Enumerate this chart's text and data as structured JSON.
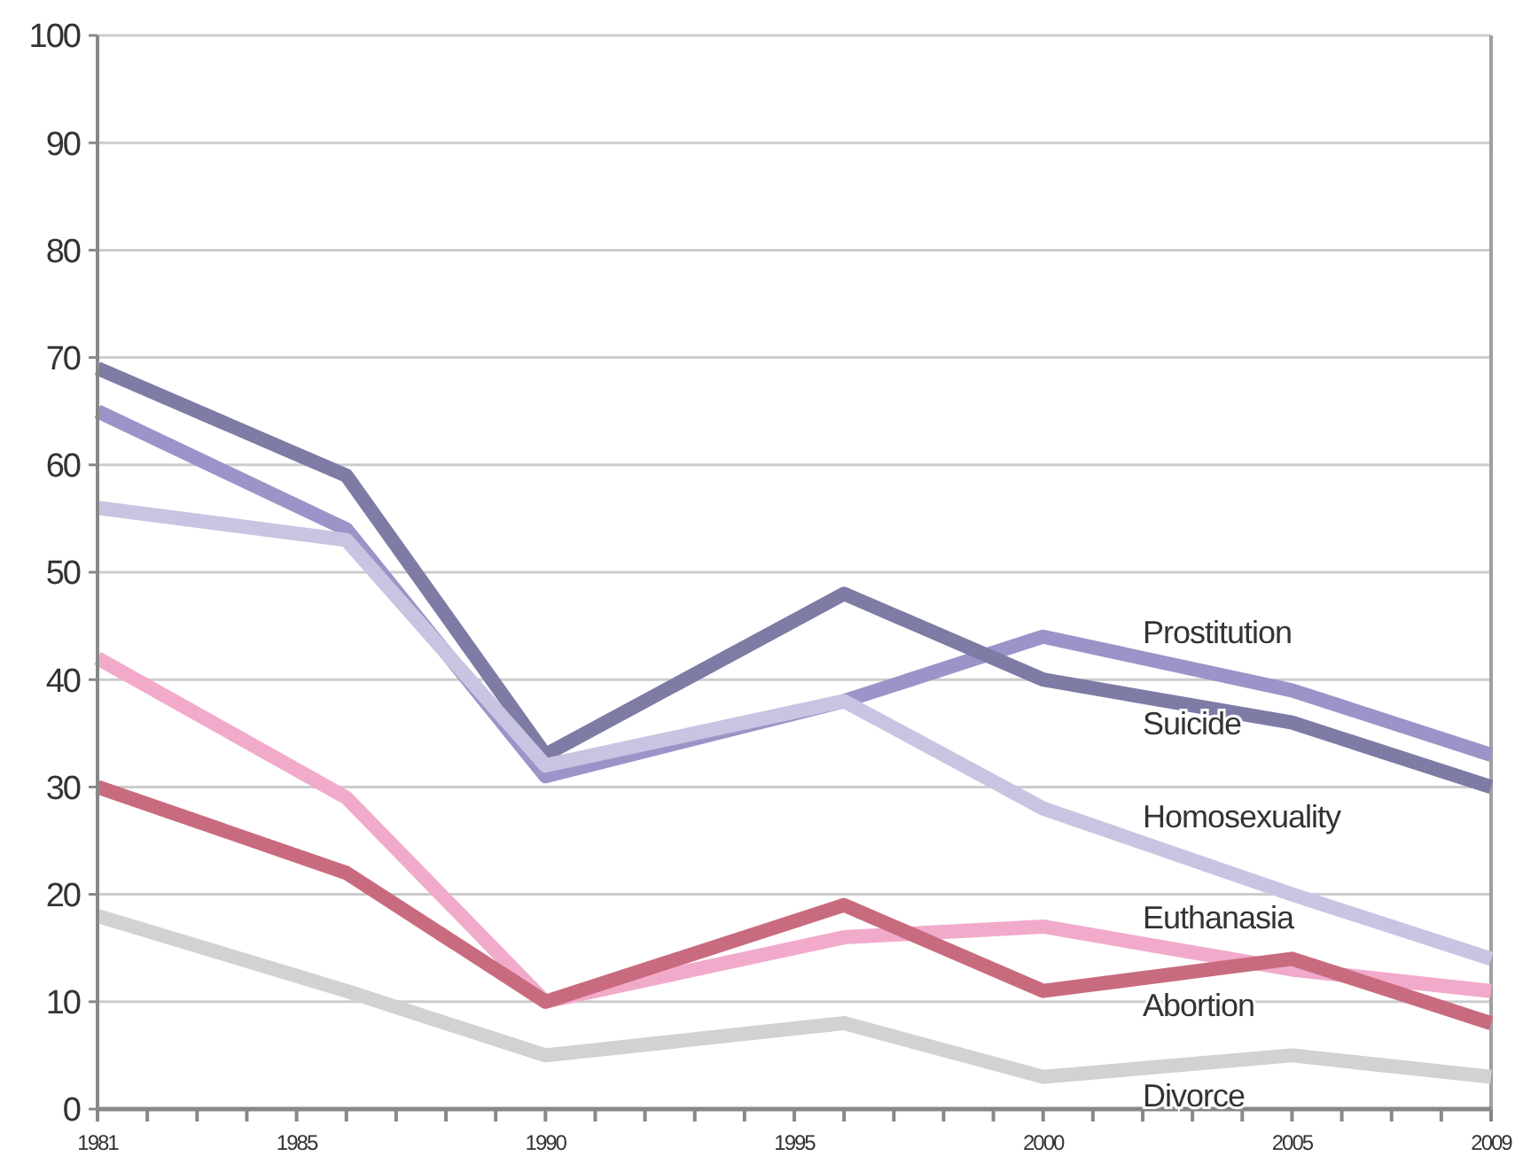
{
  "chart_data": {
    "type": "line",
    "x": [
      1981,
      1986,
      1990,
      1996,
      2000,
      2005,
      2009
    ],
    "series": [
      {
        "name": "Prostitution",
        "color": "#9b94c8",
        "values": [
          65,
          54,
          31,
          38,
          44,
          39,
          33
        ]
      },
      {
        "name": "Suicide",
        "color": "#7e7ba5",
        "values": [
          69,
          59,
          33,
          48,
          40,
          36,
          30
        ]
      },
      {
        "name": "Homosexuality",
        "color": "#c8c4e2",
        "values": [
          56,
          53,
          32,
          38,
          28,
          20,
          14
        ]
      },
      {
        "name": "Euthanasia",
        "color": "#f2aacb",
        "values": [
          42,
          29,
          10,
          16,
          17,
          13,
          11
        ]
      },
      {
        "name": "Abortion",
        "color": "#c96b7e",
        "values": [
          30,
          22,
          10,
          19,
          11,
          14,
          8
        ]
      },
      {
        "name": "Divorce",
        "color": "#d2d2d2",
        "values": [
          18,
          11,
          5,
          8,
          3,
          5,
          3
        ]
      }
    ],
    "xlim": [
      1981,
      2009
    ],
    "xticks": [
      1981,
      {
        "value": 1982,
        "label": null
      },
      {
        "value": 1983,
        "label": null
      },
      {
        "value": 1984,
        "label": null
      },
      1985,
      {
        "value": 1986,
        "label": null
      },
      {
        "value": 1987,
        "label": null
      },
      {
        "value": 1988,
        "label": null
      },
      {
        "value": 1989,
        "label": null
      },
      1990,
      {
        "value": 1991,
        "label": null
      },
      {
        "value": 1992,
        "label": null
      },
      {
        "value": 1993,
        "label": null
      },
      {
        "value": 1994,
        "label": null
      },
      1995,
      {
        "value": 1996,
        "label": null
      },
      {
        "value": 1997,
        "label": null
      },
      {
        "value": 1998,
        "label": null
      },
      {
        "value": 1999,
        "label": null
      },
      2000,
      {
        "value": 2001,
        "label": null
      },
      {
        "value": 2002,
        "label": null
      },
      {
        "value": 2003,
        "label": null
      },
      {
        "value": 2004,
        "label": null
      },
      2005,
      {
        "value": 2006,
        "label": null
      },
      {
        "value": 2007,
        "label": null
      },
      {
        "value": 2008,
        "label": null
      },
      2009
    ],
    "ylim": [
      0,
      100
    ],
    "yticks": [
      0,
      10,
      20,
      30,
      40,
      50,
      60,
      70,
      80,
      90,
      100
    ],
    "grid": "y",
    "marker": "none",
    "line_style": "solid"
  }
}
